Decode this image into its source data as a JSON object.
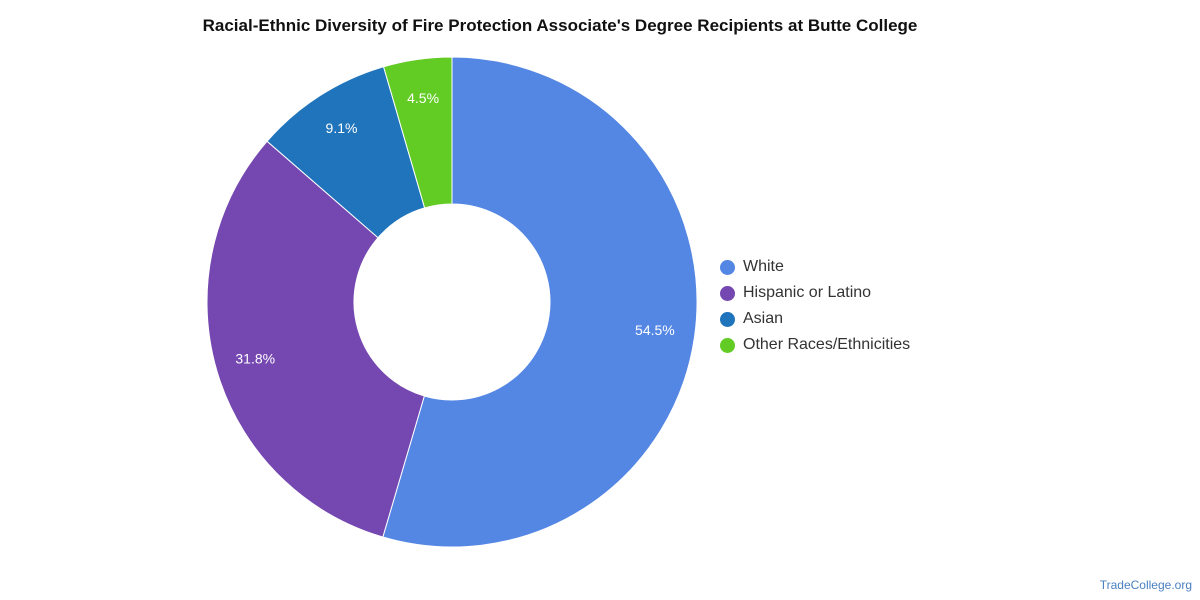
{
  "chart_data": {
    "type": "pie",
    "title": "Racial-Ethnic Diversity of Fire Protection Associate's Degree Recipients at Butte College",
    "donut": true,
    "legend_position": "right",
    "slices": [
      {
        "label": "White",
        "value": 54.5,
        "display": "54.5%",
        "color": "#5486e3"
      },
      {
        "label": "Hispanic or Latino",
        "value": 31.8,
        "display": "31.8%",
        "color": "#7547b0"
      },
      {
        "label": "Asian",
        "value": 9.1,
        "display": "9.1%",
        "color": "#1f74bb"
      },
      {
        "label": "Other Races/Ethnicities",
        "value": 4.5,
        "display": "4.5%",
        "color": "#62cc25"
      }
    ]
  },
  "source": "TradeCollege.org"
}
